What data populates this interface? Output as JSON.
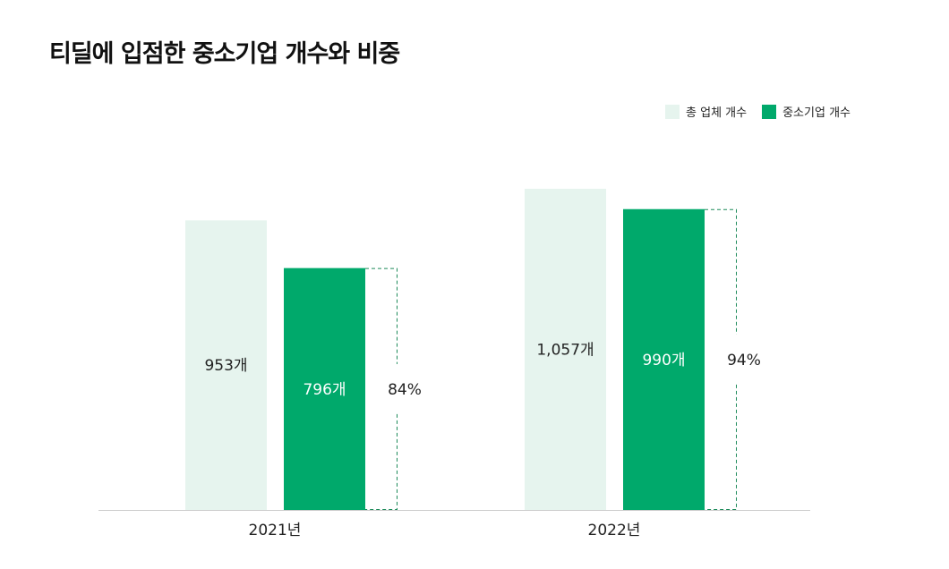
{
  "title": "티딜에 입점한 중소기업 개수와 비중",
  "chart_data": {
    "type": "bar",
    "title": "티딜에 입점한 중소기업 개수와 비중",
    "categories": [
      "2021년",
      "2022년"
    ],
    "series": [
      {
        "name": "총 업체 개수",
        "values": [
          953,
          1057
        ],
        "labels": [
          "953개",
          "1,057개"
        ],
        "color": "#e6f4ee"
      },
      {
        "name": "중소기업 개수",
        "values": [
          796,
          990
        ],
        "labels": [
          "796개",
          "990개"
        ],
        "color": "#00a96b"
      }
    ],
    "ratio_labels": [
      "84%",
      "94%"
    ],
    "legend": "top-right",
    "grid": false
  }
}
